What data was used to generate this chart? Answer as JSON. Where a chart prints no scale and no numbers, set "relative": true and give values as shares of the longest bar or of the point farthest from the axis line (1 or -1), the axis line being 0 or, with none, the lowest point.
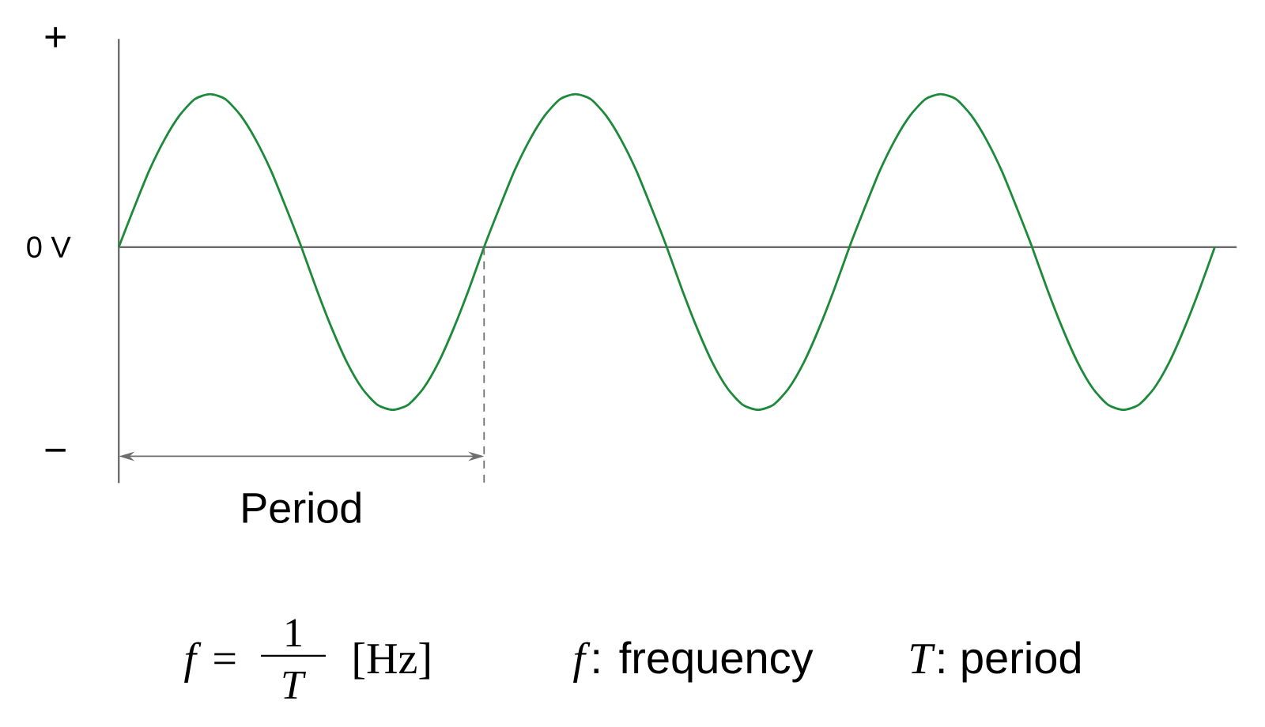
{
  "chart_data": {
    "type": "line",
    "relative": true,
    "color": "#1c8a3a",
    "categories": [
      null,
      null,
      null,
      null,
      null,
      null,
      null,
      null,
      null,
      null,
      null,
      null,
      null,
      null,
      null,
      null,
      null,
      null,
      null,
      null,
      null,
      null,
      null,
      null,
      null,
      null,
      null,
      null,
      null,
      null,
      null,
      null,
      null,
      null,
      null,
      null,
      null,
      null,
      null,
      null,
      null,
      null,
      null,
      null,
      null,
      null,
      null,
      null,
      null,
      null,
      null,
      null,
      null,
      null,
      null,
      null,
      null,
      null,
      null,
      null,
      null,
      null,
      null,
      null,
      null,
      null,
      null,
      null,
      null,
      null,
      null,
      null,
      null
    ],
    "values": [
      0,
      0.24,
      0.47,
      0.66,
      0.81,
      0.91,
      0.94,
      0.91,
      0.81,
      0.66,
      0.47,
      0.24,
      0,
      -0.26,
      -0.5,
      -0.71,
      -0.87,
      -0.97,
      -1,
      -0.97,
      -0.87,
      -0.71,
      -0.5,
      -0.26,
      0,
      0.24,
      0.47,
      0.66,
      0.81,
      0.91,
      0.94,
      0.91,
      0.81,
      0.66,
      0.47,
      0.24,
      0,
      -0.26,
      -0.5,
      -0.71,
      -0.87,
      -0.97,
      -1,
      -0.97,
      -0.87,
      -0.71,
      -0.5,
      -0.26,
      0,
      0.24,
      0.47,
      0.66,
      0.81,
      0.91,
      0.94,
      0.91,
      0.81,
      0.66,
      0.47,
      0.24,
      0,
      -0.26,
      -0.5,
      -0.71,
      -0.87,
      -0.97,
      -1,
      -0.97,
      -0.87,
      -0.71,
      -0.5,
      -0.26,
      0
    ],
    "annotations": [
      "+",
      "0 V",
      "−",
      "Period",
      "*f* =",
      "1",
      "*T*",
      "[Hz]",
      "*f*: frequency",
      "*T*: period"
    ]
  }
}
